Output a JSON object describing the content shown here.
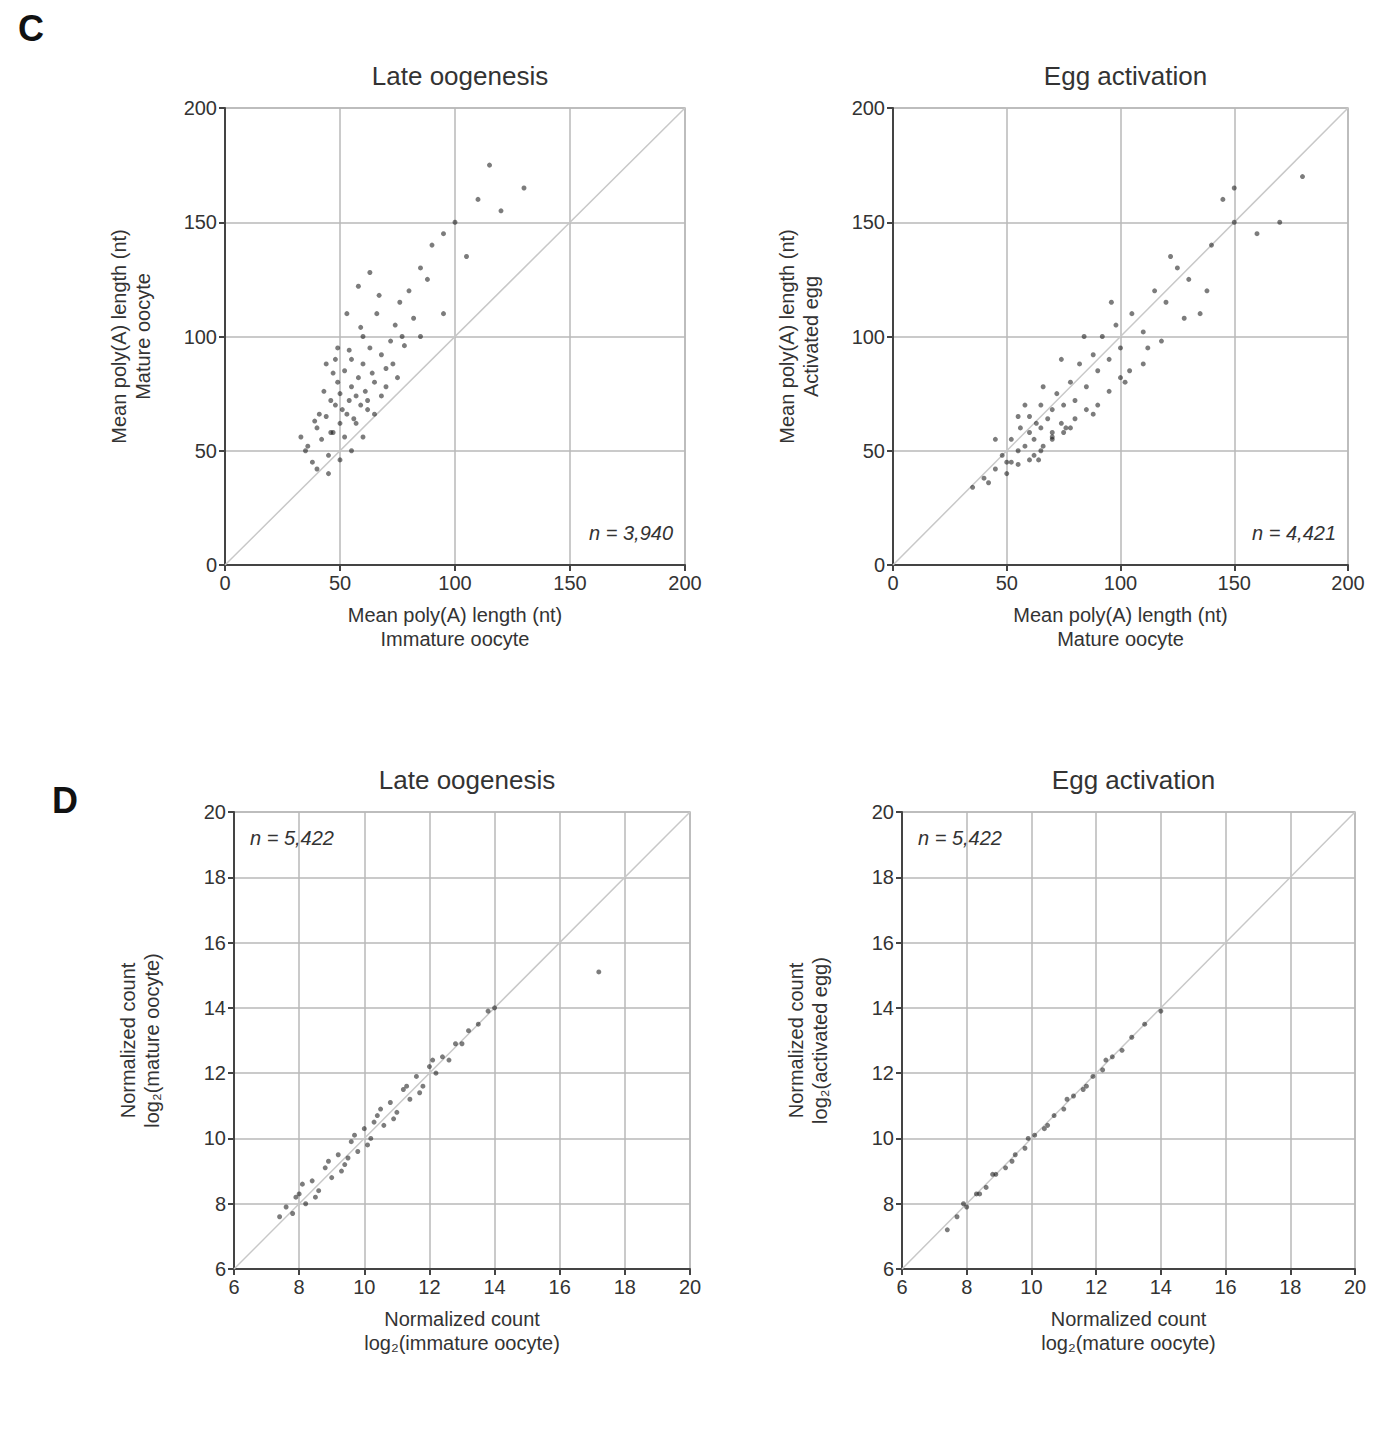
{
  "chart_data": [
    {
      "type": "scatter",
      "panel": "C",
      "title": "Late oogenesis",
      "x_label": "Mean poly(A) length (nt)\nImmature oocyte",
      "y_label": "Mean poly(A) length (nt)\nMature oocyte",
      "annotation": "n = 3,940",
      "xlim": [
        0,
        200
      ],
      "ylim": [
        0,
        200
      ],
      "xticks": [
        0,
        50,
        100,
        150,
        200
      ],
      "yticks": [
        0,
        50,
        100,
        150,
        200
      ],
      "grid": true,
      "color": "#111111",
      "marker": "circle",
      "reference_line": {
        "x": [
          0,
          200
        ],
        "y": [
          0,
          200
        ]
      },
      "x": [
        35,
        38,
        40,
        42,
        44,
        45,
        46,
        47,
        48,
        49,
        50,
        50,
        51,
        52,
        53,
        54,
        55,
        55,
        56,
        57,
        58,
        59,
        60,
        60,
        61,
        62,
        63,
        64,
        65,
        66,
        68,
        70,
        72,
        74,
        76,
        78,
        80,
        82,
        85,
        88,
        90,
        95,
        100,
        105,
        110,
        120,
        130,
        36,
        41,
        43,
        46,
        48,
        52,
        54,
        57,
        59,
        62,
        65,
        67,
        70,
        73,
        77,
        40,
        45,
        50,
        55,
        60,
        44,
        49,
        53,
        58,
        63,
        68,
        75,
        85,
        95,
        115,
        33,
        39,
        47
      ],
      "values": [
        50,
        45,
        60,
        55,
        65,
        48,
        72,
        58,
        70,
        80,
        62,
        75,
        68,
        85,
        66,
        72,
        78,
        90,
        64,
        74,
        82,
        70,
        88,
        100,
        76,
        68,
        95,
        84,
        80,
        110,
        92,
        86,
        98,
        105,
        115,
        96,
        120,
        108,
        130,
        125,
        140,
        145,
        150,
        135,
        160,
        155,
        165,
        52,
        66,
        76,
        58,
        90,
        56,
        94,
        62,
        104,
        72,
        66,
        118,
        78,
        88,
        100,
        42,
        40,
        46,
        50,
        56,
        88,
        95,
        110,
        122,
        128,
        74,
        82,
        100,
        110,
        175,
        56,
        63,
        84
      ]
    },
    {
      "type": "scatter",
      "title": "Egg activation",
      "x_label": "Mean poly(A) length (nt)\nMature oocyte",
      "y_label": "Mean poly(A) length (nt)\nActivated egg",
      "annotation": "n = 4,421",
      "xlim": [
        0,
        200
      ],
      "ylim": [
        0,
        200
      ],
      "xticks": [
        0,
        50,
        100,
        150,
        200
      ],
      "yticks": [
        0,
        50,
        100,
        150,
        200
      ],
      "grid": true,
      "color": "#111111",
      "marker": "circle",
      "reference_line": {
        "x": [
          0,
          200
        ],
        "y": [
          0,
          200
        ]
      },
      "x": [
        40,
        45,
        48,
        50,
        52,
        55,
        56,
        58,
        60,
        60,
        62,
        63,
        65,
        65,
        66,
        68,
        70,
        70,
        72,
        74,
        75,
        78,
        80,
        82,
        85,
        88,
        90,
        92,
        95,
        98,
        100,
        105,
        110,
        115,
        120,
        125,
        130,
        140,
        150,
        160,
        45,
        50,
        55,
        58,
        62,
        66,
        70,
        74,
        78,
        84,
        90,
        96,
        104,
        112,
        122,
        135,
        145,
        55,
        60,
        65,
        70,
        75,
        80,
        85,
        95,
        100,
        110,
        118,
        128,
        138,
        35,
        42,
        52,
        64,
        76,
        88,
        102,
        170,
        180,
        150
      ],
      "values": [
        38,
        42,
        48,
        45,
        55,
        50,
        60,
        52,
        58,
        65,
        55,
        62,
        60,
        70,
        52,
        64,
        68,
        58,
        75,
        62,
        70,
        80,
        72,
        88,
        78,
        92,
        85,
        100,
        90,
        105,
        95,
        110,
        102,
        120,
        115,
        130,
        125,
        140,
        150,
        145,
        55,
        40,
        65,
        70,
        48,
        78,
        55,
        90,
        60,
        100,
        70,
        115,
        85,
        95,
        135,
        110,
        160,
        44,
        46,
        50,
        56,
        58,
        64,
        68,
        76,
        82,
        88,
        98,
        108,
        120,
        34,
        36,
        45,
        46,
        60,
        66,
        80,
        150,
        170,
        165
      ]
    },
    {
      "type": "scatter",
      "panel": "D",
      "title": "Late oogenesis",
      "x_label": "Normalized count\nlog₂(immature oocyte)",
      "y_label": "Normalized count\nlog₂(mature oocyte)",
      "annotation": "n = 5,422",
      "xlim": [
        6,
        20
      ],
      "ylim": [
        6,
        20
      ],
      "xticks": [
        6,
        8,
        10,
        12,
        14,
        16,
        18,
        20
      ],
      "yticks": [
        6,
        8,
        10,
        12,
        14,
        16,
        18,
        20
      ],
      "grid": true,
      "color": "#111111",
      "marker": "circle",
      "reference_line": {
        "x": [
          6,
          20
        ],
        "y": [
          6,
          20
        ]
      },
      "x": [
        7.4,
        7.6,
        7.8,
        8.0,
        8.2,
        8.4,
        8.6,
        8.8,
        9.0,
        9.2,
        9.4,
        9.6,
        9.8,
        10.0,
        10.2,
        10.4,
        10.6,
        10.8,
        11.0,
        11.2,
        11.4,
        11.6,
        11.8,
        12.0,
        12.2,
        12.4,
        12.6,
        12.8,
        13.0,
        13.2,
        13.5,
        13.8,
        14.0,
        8.1,
        8.5,
        8.9,
        9.3,
        9.7,
        10.1,
        10.5,
        10.9,
        11.3,
        11.7,
        12.1,
        9.5,
        10.3,
        7.9,
        17.2
      ],
      "values": [
        7.6,
        7.9,
        7.7,
        8.3,
        8.0,
        8.7,
        8.4,
        9.1,
        8.8,
        9.5,
        9.2,
        9.9,
        9.6,
        10.3,
        10.0,
        10.7,
        10.4,
        11.1,
        10.8,
        11.5,
        11.2,
        11.9,
        11.6,
        12.2,
        12.0,
        12.5,
        12.4,
        12.9,
        12.9,
        13.3,
        13.5,
        13.9,
        14.0,
        8.6,
        8.2,
        9.3,
        9.0,
        10.1,
        9.8,
        10.9,
        10.6,
        11.6,
        11.4,
        12.4,
        9.4,
        10.5,
        8.2,
        15.1
      ]
    },
    {
      "type": "scatter",
      "title": "Egg activation",
      "x_label": "Normalized count\nlog₂(mature oocyte)",
      "y_label": "Normalized count\nlog₂(activated egg)",
      "annotation": "n = 5,422",
      "xlim": [
        6,
        20
      ],
      "ylim": [
        6,
        20
      ],
      "xticks": [
        6,
        8,
        10,
        12,
        14,
        16,
        18,
        20
      ],
      "yticks": [
        6,
        8,
        10,
        12,
        14,
        16,
        18,
        20
      ],
      "grid": true,
      "color": "#111111",
      "marker": "circle",
      "reference_line": {
        "x": [
          6,
          20
        ],
        "y": [
          6,
          20
        ]
      },
      "x": [
        7.4,
        7.7,
        8.0,
        8.3,
        8.6,
        8.9,
        9.2,
        9.5,
        9.8,
        10.1,
        10.4,
        10.7,
        11.0,
        11.3,
        11.6,
        11.9,
        12.2,
        12.5,
        12.8,
        13.1,
        13.5,
        14.0,
        7.9,
        8.4,
        8.8,
        9.4,
        9.9,
        10.5,
        11.1,
        11.7,
        12.3
      ],
      "values": [
        7.2,
        7.6,
        7.9,
        8.3,
        8.5,
        8.9,
        9.1,
        9.5,
        9.7,
        10.1,
        10.3,
        10.7,
        10.9,
        11.3,
        11.5,
        11.9,
        12.1,
        12.5,
        12.7,
        13.1,
        13.5,
        13.9,
        8.0,
        8.3,
        8.9,
        9.3,
        10.0,
        10.4,
        11.2,
        11.6,
        12.4
      ]
    }
  ]
}
